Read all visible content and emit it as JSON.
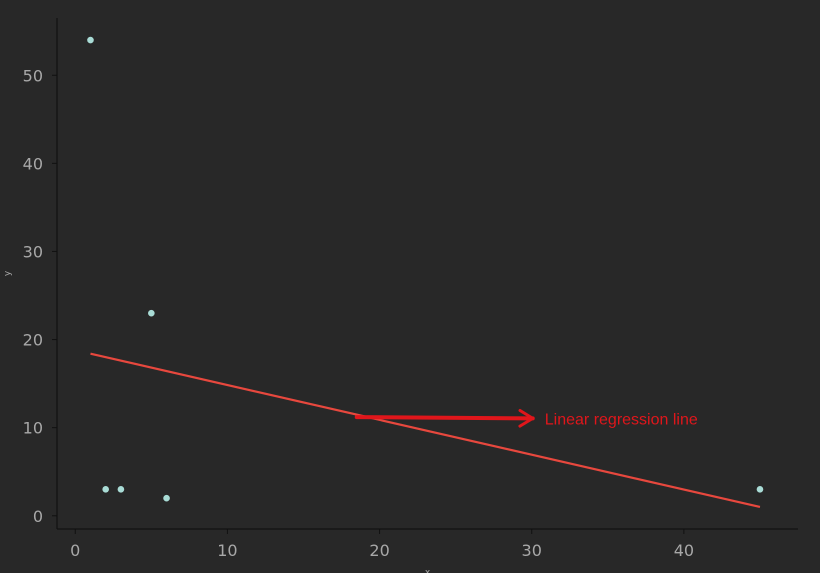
{
  "theme": {
    "background": "#282828",
    "point_color": "#a9dcd6",
    "line_color": "#e8483e",
    "annotation_color": "#e0161b",
    "text_color": "#a8a8a8",
    "axis_color": "#111111"
  },
  "chart_data": {
    "type": "scatter",
    "title": "",
    "xlabel": "x",
    "ylabel": "y",
    "xlim": [
      -1.2,
      47.5
    ],
    "ylim": [
      -1.5,
      56.5
    ],
    "x_ticks": [
      "0",
      "10",
      "20",
      "30",
      "40"
    ],
    "y_ticks": [
      "0",
      "10",
      "20",
      "30",
      "40",
      "50"
    ],
    "grid": false,
    "series": [
      {
        "type": "scatter",
        "x": [
          1,
          2,
          3,
          5,
          6,
          45
        ],
        "y": [
          54,
          3,
          3,
          23,
          2,
          3
        ]
      },
      {
        "type": "line",
        "x": [
          1,
          45
        ],
        "y": [
          18.4,
          1.0
        ]
      }
    ],
    "annotation": {
      "text": "Linear regression line",
      "xy": [
        18.5,
        11.2
      ],
      "xytext": [
        30.2,
        10.6
      ]
    }
  }
}
